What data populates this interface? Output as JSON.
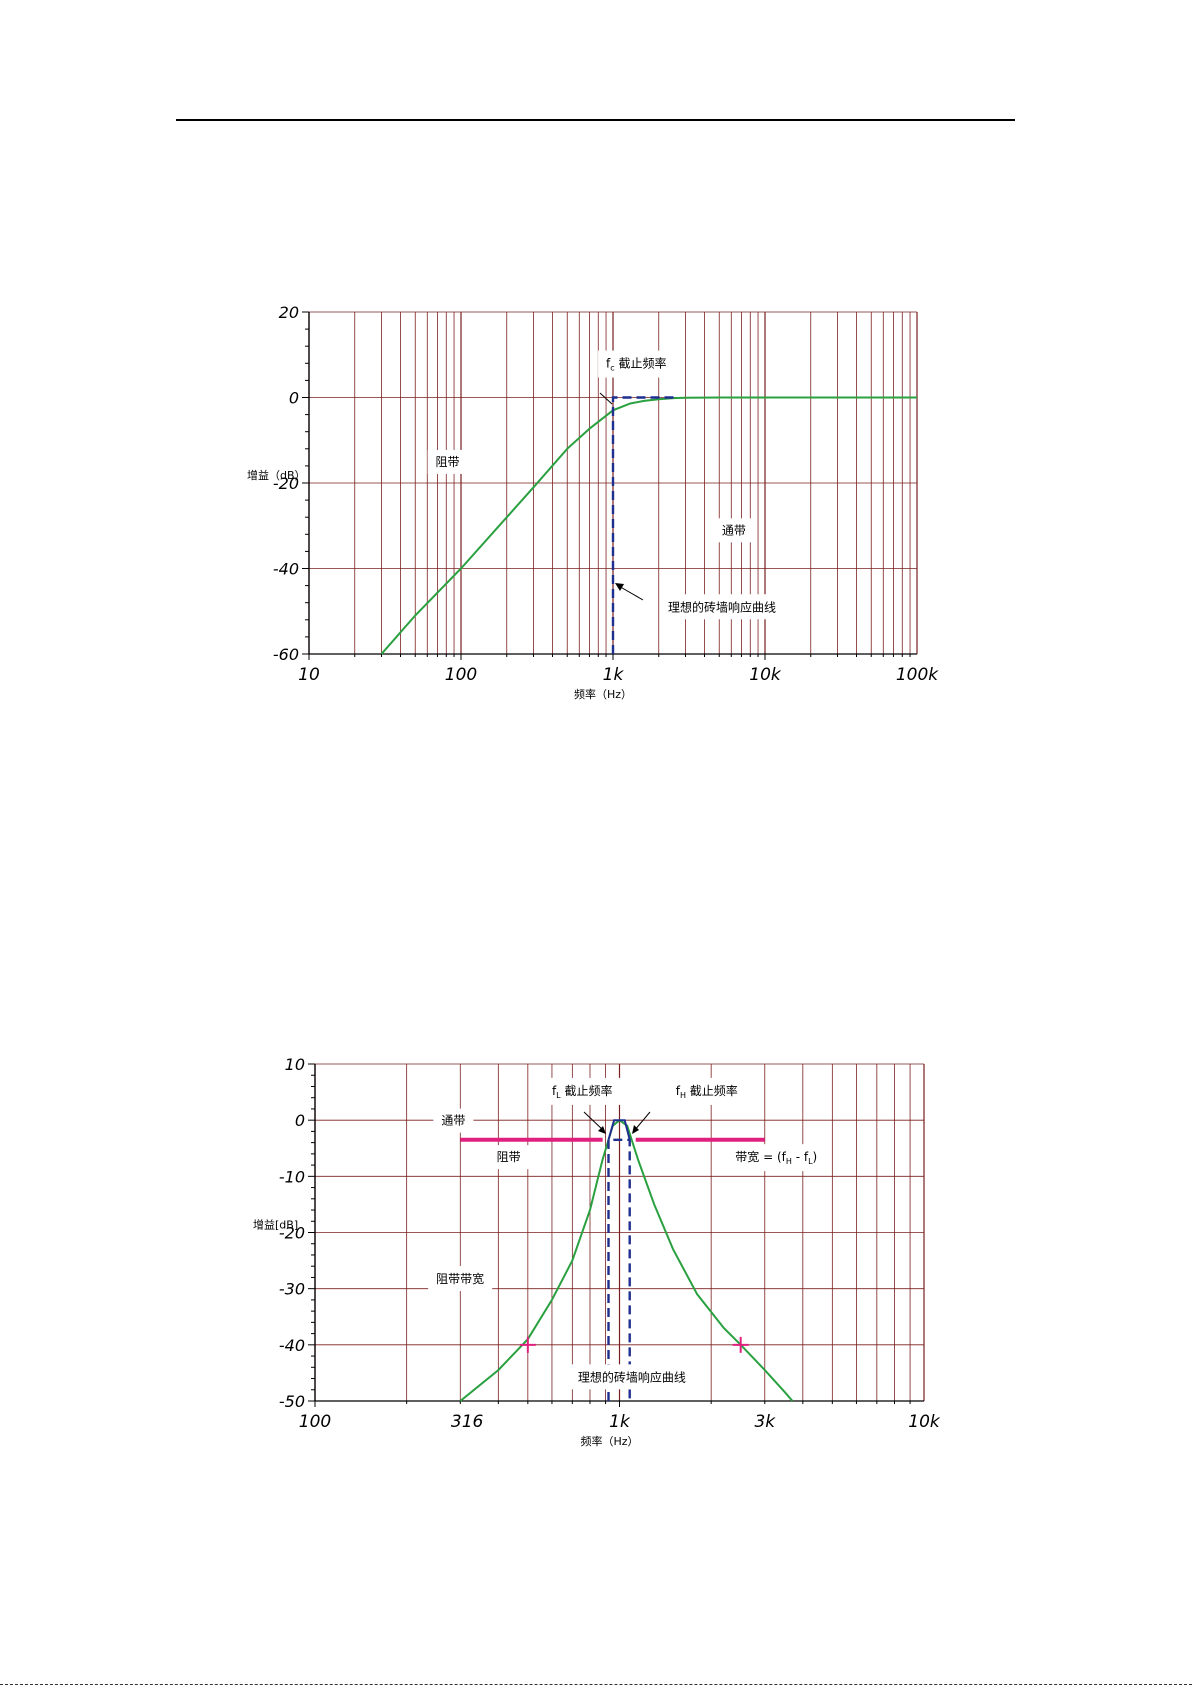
{
  "chart_data": [
    {
      "type": "line",
      "x_scale": "log",
      "xlim": [
        10,
        100000
      ],
      "ylim": [
        -60,
        20
      ],
      "grid": true,
      "ylabel": "增益（dB）",
      "xlabel": "频率（Hz）",
      "x_ticks": [
        10,
        100,
        1000,
        10000,
        100000
      ],
      "x_tick_labels": [
        "10",
        "100",
        "1k",
        "10k",
        "100k"
      ],
      "y_ticks": [
        20,
        0,
        -20,
        -40,
        -60
      ],
      "y_tick_labels": [
        "20",
        "0",
        "-20",
        "-40",
        "-60"
      ],
      "series": [
        {
          "x": [
            30,
            50,
            100,
            200,
            300,
            500,
            700,
            1000,
            1300,
            1600,
            2000,
            2500,
            3000,
            5000,
            10000,
            30000,
            100000
          ],
          "y": [
            -60,
            -51,
            -40,
            -28,
            -21,
            -12,
            -7.3,
            -3,
            -1.4,
            -0.8,
            -0.4,
            -0.15,
            -0.05,
            0,
            0,
            0,
            0
          ],
          "color": "#2aa040"
        },
        {
          "x": [
            1000,
            1000,
            2500
          ],
          "y": [
            -60,
            0,
            0
          ],
          "color": "#1f2f8f",
          "style": "dashed"
        }
      ],
      "annotations": [
        {
          "text_main": "f",
          "text_sub": "c",
          "text": " 截止频率",
          "x": 900,
          "y": 7
        },
        {
          "text": "阻带",
          "x": 68,
          "y": -16
        },
        {
          "text": "通带",
          "x": 5200,
          "y": -32
        },
        {
          "text": "理想的砖墙响应曲线",
          "x": 2300,
          "y": -50
        }
      ],
      "grid_color": "#7a1f1f"
    },
    {
      "type": "line",
      "x_scale": "log",
      "xlim": [
        100,
        10000
      ],
      "ylim": [
        -50,
        10
      ],
      "grid": true,
      "ylabel": "增益[dB]",
      "xlabel": "频率（Hz）",
      "x_ticks": [
        100,
        316,
        1000,
        3000,
        10000
      ],
      "x_tick_labels": [
        "100",
        "316",
        "1k",
        "3k",
        "10k"
      ],
      "y_ticks": [
        10,
        0,
        -10,
        -20,
        -30,
        -40,
        -50
      ],
      "y_tick_labels": [
        "10",
        "0",
        "-10",
        "-20",
        "-30",
        "-40",
        "-50"
      ],
      "series": [
        {
          "x": [
            300,
            400,
            500,
            600,
            700,
            800,
            880,
            950,
            1000,
            1060,
            1150,
            1300,
            1500,
            1800,
            2200,
            2500,
            3000,
            3500,
            3700
          ],
          "y": [
            -50,
            -44.5,
            -39,
            -32,
            -25,
            -16,
            -7,
            -1,
            0,
            -1,
            -7,
            -15,
            -23,
            -31,
            -37,
            -40,
            -44.5,
            -48.5,
            -50
          ],
          "color": "#2aa040"
        },
        {
          "x": [
            920,
            920,
            1080,
            1080
          ],
          "y": [
            -50,
            -3.5,
            -3.5,
            -50
          ],
          "color": "#1f2f8f",
          "style": "dashed"
        },
        {
          "x": [
            920,
            960,
            1000,
            1040,
            1080
          ],
          "y": [
            -3.5,
            0,
            0,
            0,
            -3.5
          ],
          "color": "#1f2f8f"
        },
        {
          "x": [
            300,
            880
          ],
          "y": [
            -3.5,
            -3.5
          ],
          "color": "#e0207f",
          "style": "thick"
        },
        {
          "x": [
            1130,
            3000
          ],
          "y": [
            -3.5,
            -3.5
          ],
          "color": "#e0207f",
          "style": "thick"
        }
      ],
      "markers": [
        {
          "x": 500,
          "y": -40,
          "color": "#e0207f"
        },
        {
          "x": 2500,
          "y": -40,
          "color": "#e0207f"
        }
      ],
      "annotations": [
        {
          "text_main": "f",
          "text_sub": "L",
          "text": " 截止频率",
          "x": 600,
          "y": 4.5
        },
        {
          "text_main": "f",
          "text_sub": "H",
          "text": " 截止频率",
          "x": 1530,
          "y": 4.5
        },
        {
          "text": "通带",
          "x": 260,
          "y": -0.8
        },
        {
          "text": "阻带",
          "x": 395,
          "y": -7.3
        },
        {
          "text": "带宽 = (f",
          "text_sub": "H",
          "text_mid": " - f",
          "text_sub2": "L",
          "text_end": ")",
          "x": 2400,
          "y": -7.3
        },
        {
          "text": "阻带带宽",
          "x": 250,
          "y": -29
        },
        {
          "text": "理想的砖墙响应曲线",
          "x": 730,
          "y": -46.5
        }
      ],
      "grid_color": "#7a1f1f"
    }
  ]
}
